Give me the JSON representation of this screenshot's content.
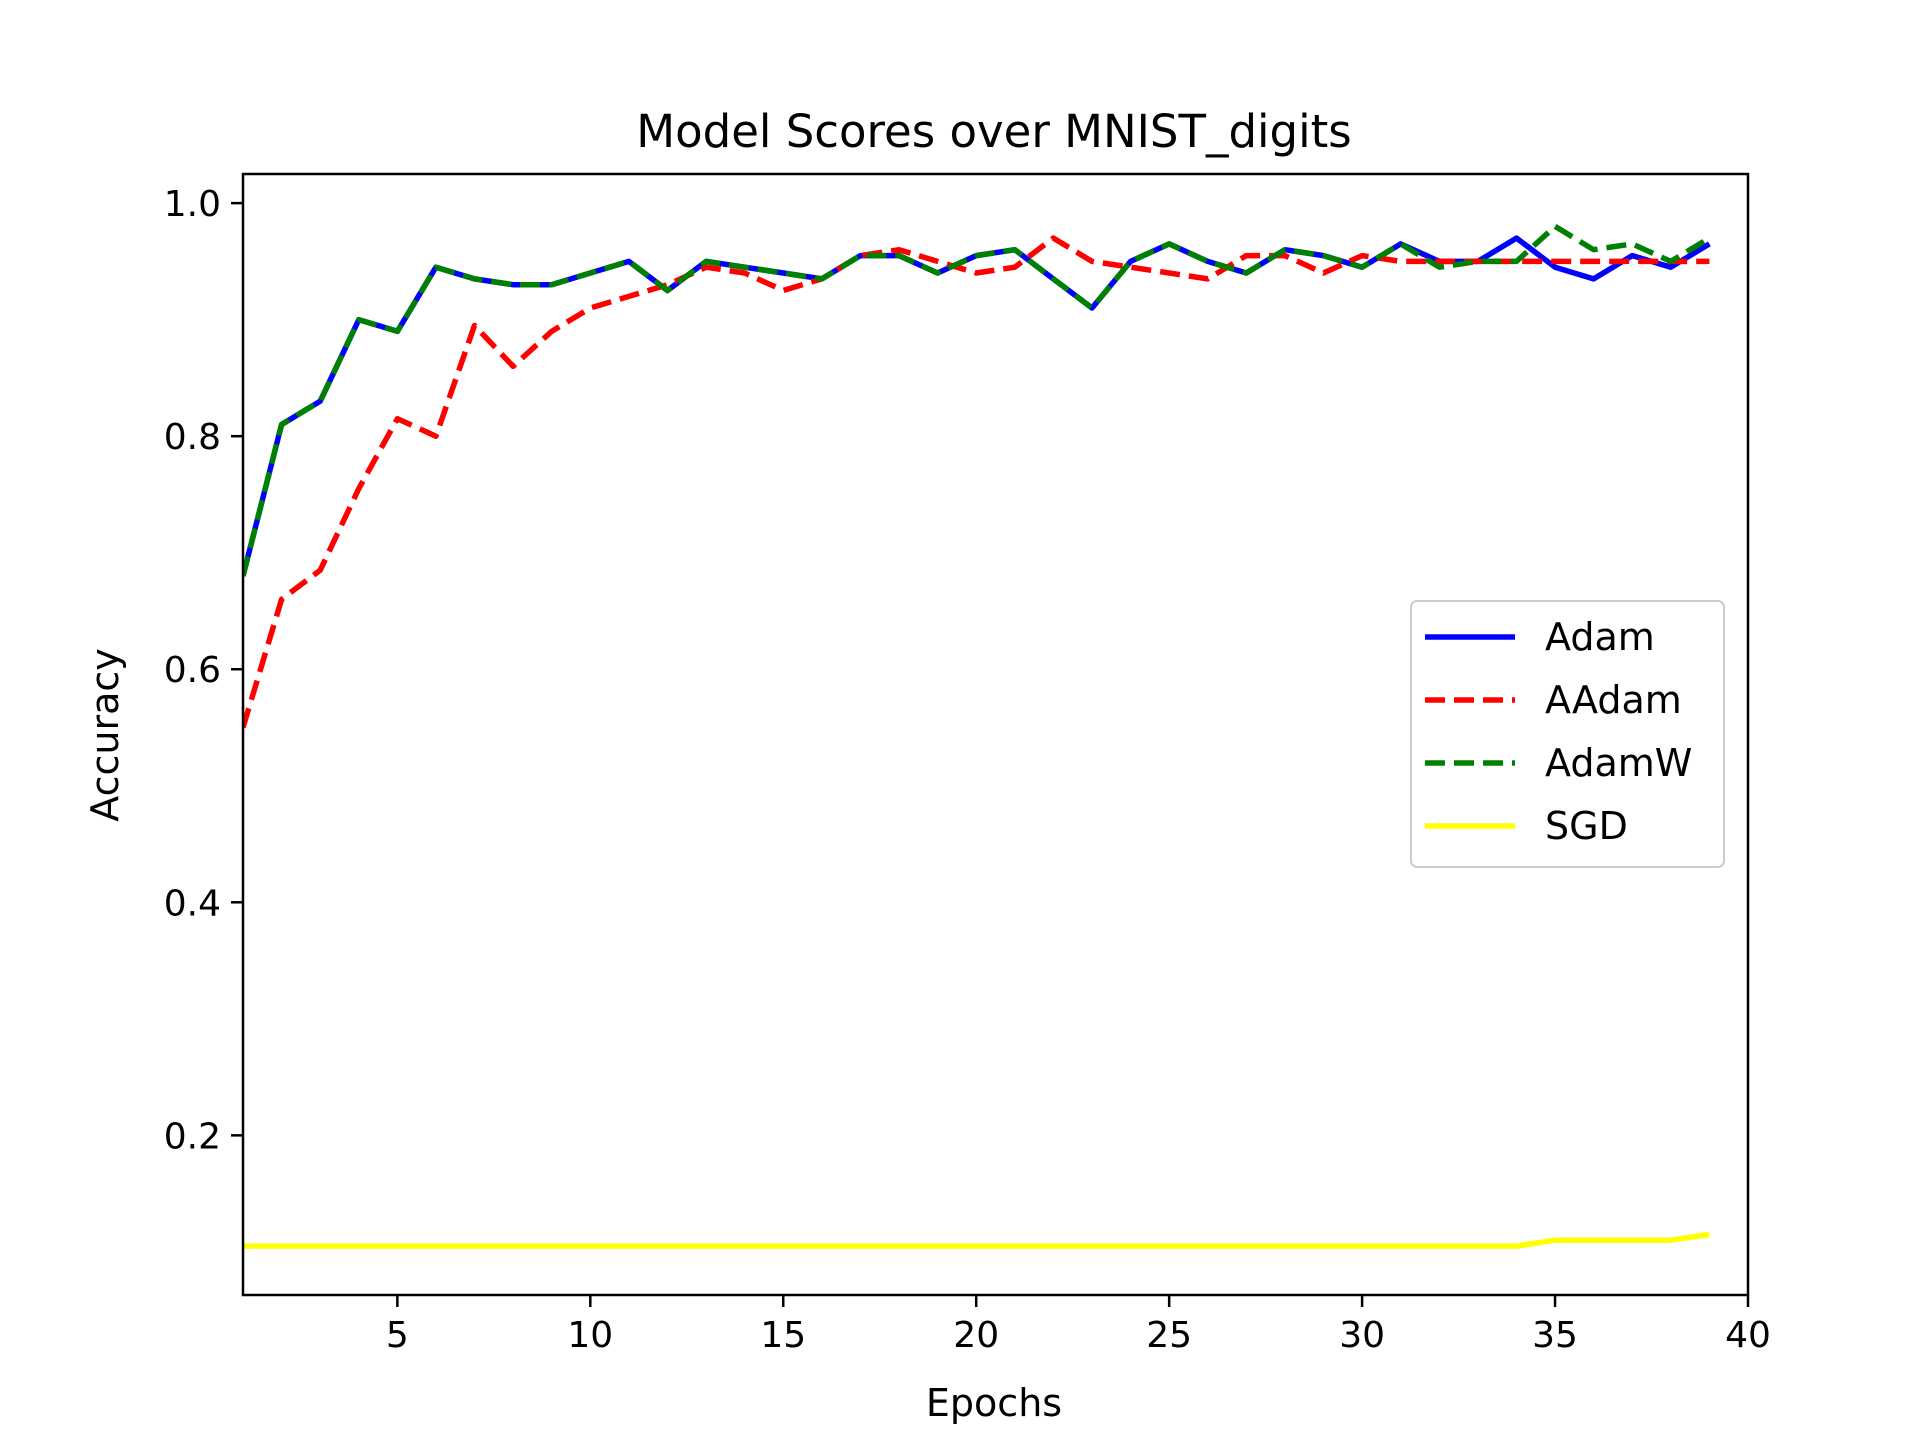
{
  "chart_data": {
    "type": "line",
    "title": "Model Scores over MNIST_digits",
    "xlabel": "Epochs",
    "ylabel": "Accuracy",
    "xlim": [
      1,
      40
    ],
    "ylim": [
      0.063,
      1.025
    ],
    "xticks": [
      5,
      10,
      15,
      20,
      25,
      30,
      35,
      40
    ],
    "yticks": [
      0.2,
      0.4,
      0.6,
      0.8,
      1.0
    ],
    "xtick_labels": [
      "5",
      "10",
      "15",
      "20",
      "25",
      "30",
      "35",
      "40"
    ],
    "ytick_labels": [
      "0.2",
      "0.4",
      "0.6",
      "0.8",
      "1.0"
    ],
    "grid": false,
    "legend_position": "center-right",
    "x": [
      1,
      2,
      3,
      4,
      5,
      6,
      7,
      8,
      9,
      10,
      11,
      12,
      13,
      14,
      15,
      16,
      17,
      18,
      19,
      20,
      21,
      22,
      23,
      24,
      25,
      26,
      27,
      28,
      29,
      30,
      31,
      32,
      33,
      34,
      35,
      36,
      37,
      38,
      39
    ],
    "series": [
      {
        "name": "Adam",
        "color": "#0000ff",
        "style": "solid",
        "values": [
          0.68,
          0.81,
          0.83,
          0.9,
          0.89,
          0.945,
          0.935,
          0.93,
          0.93,
          0.94,
          0.95,
          0.925,
          0.95,
          0.945,
          0.94,
          0.935,
          0.955,
          0.955,
          0.94,
          0.955,
          0.96,
          0.935,
          0.91,
          0.95,
          0.965,
          0.95,
          0.94,
          0.96,
          0.955,
          0.945,
          0.965,
          0.95,
          0.95,
          0.97,
          0.945,
          0.935,
          0.955,
          0.945,
          0.965
        ]
      },
      {
        "name": "AAdam",
        "color": "#ff0000",
        "style": "dashed",
        "values": [
          0.55,
          0.66,
          0.685,
          0.755,
          0.815,
          0.8,
          0.895,
          0.86,
          0.89,
          0.91,
          0.92,
          0.93,
          0.945,
          0.94,
          0.925,
          0.935,
          0.955,
          0.96,
          0.95,
          0.94,
          0.945,
          0.97,
          0.95,
          0.945,
          0.94,
          0.935,
          0.955,
          0.955,
          0.94,
          0.955,
          0.95,
          0.95,
          0.95,
          0.95,
          0.95,
          0.95,
          0.95,
          0.95,
          0.95
        ]
      },
      {
        "name": "AdamW",
        "color": "#008000",
        "style": "dashed",
        "values": [
          0.68,
          0.81,
          0.83,
          0.9,
          0.89,
          0.945,
          0.935,
          0.93,
          0.93,
          0.94,
          0.95,
          0.925,
          0.95,
          0.945,
          0.94,
          0.935,
          0.955,
          0.955,
          0.94,
          0.955,
          0.96,
          0.935,
          0.91,
          0.95,
          0.965,
          0.95,
          0.94,
          0.96,
          0.955,
          0.945,
          0.965,
          0.945,
          0.95,
          0.95,
          0.98,
          0.96,
          0.965,
          0.95,
          0.97
        ]
      },
      {
        "name": "SGD",
        "color": "#ffff00",
        "style": "solid",
        "values": [
          0.105,
          0.105,
          0.105,
          0.105,
          0.105,
          0.105,
          0.105,
          0.105,
          0.105,
          0.105,
          0.105,
          0.105,
          0.105,
          0.105,
          0.105,
          0.105,
          0.105,
          0.105,
          0.105,
          0.105,
          0.105,
          0.105,
          0.105,
          0.105,
          0.105,
          0.105,
          0.105,
          0.105,
          0.105,
          0.105,
          0.105,
          0.105,
          0.105,
          0.105,
          0.11,
          0.11,
          0.11,
          0.11,
          0.115
        ]
      }
    ]
  }
}
